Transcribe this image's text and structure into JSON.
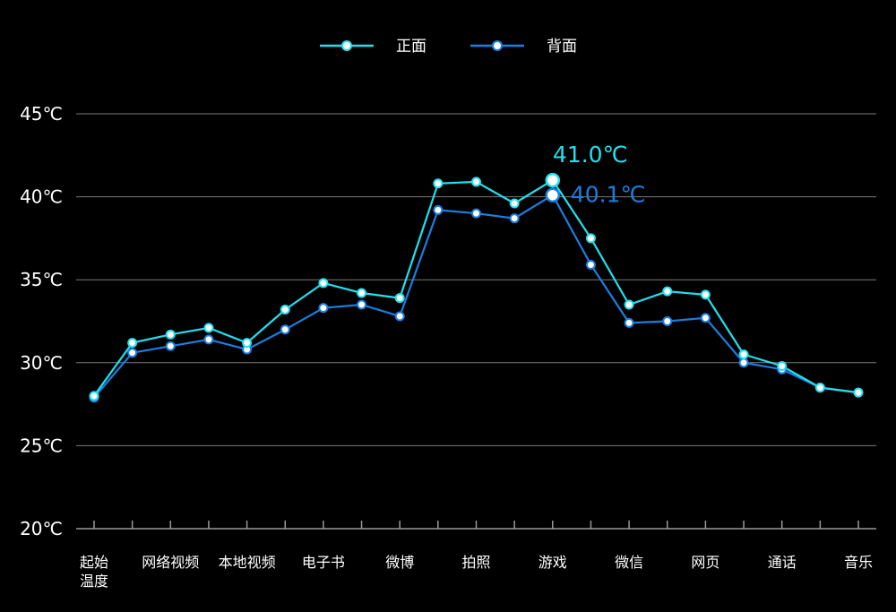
{
  "chart_data": {
    "type": "line",
    "categories": [
      "起始\n温度",
      "",
      "网络视频",
      "",
      "本地视频",
      "",
      "电子书",
      "",
      "微博",
      "",
      "拍照",
      "",
      "游戏",
      "",
      "微信",
      "",
      "网页",
      "",
      "通话",
      "",
      "音乐"
    ],
    "series": [
      {
        "name": "正面",
        "color": "#21e1ee",
        "values": [
          28.0,
          31.2,
          31.7,
          32.1,
          31.2,
          33.2,
          34.8,
          34.2,
          33.9,
          40.8,
          40.9,
          39.6,
          41.0,
          37.5,
          33.5,
          34.3,
          34.1,
          30.5,
          29.8,
          28.5,
          28.2
        ]
      },
      {
        "name": "背面",
        "color": "#1a7fe0",
        "values": [
          27.9,
          30.6,
          31.0,
          31.4,
          30.8,
          32.0,
          33.3,
          33.5,
          32.8,
          39.2,
          39.0,
          38.7,
          40.1,
          35.9,
          32.4,
          32.5,
          32.7,
          30.0,
          29.6,
          28.5,
          28.2
        ]
      }
    ],
    "y_ticks": [
      "20℃",
      "25℃",
      "30℃",
      "35℃",
      "40℃",
      "45℃"
    ],
    "ylim": [
      20,
      45
    ],
    "grid": true,
    "legend_position": "top-center",
    "annotations": [
      {
        "text": "41.0℃",
        "series": 0,
        "index": 12,
        "color": "#21e1ee"
      },
      {
        "text": "40.1℃",
        "series": 1,
        "index": 12,
        "color": "#1a7fe0"
      }
    ],
    "colors": {
      "background": "#000000",
      "grid": "#7a7a7a",
      "axis": "#9a9a9a",
      "text": "#ffffff"
    }
  }
}
